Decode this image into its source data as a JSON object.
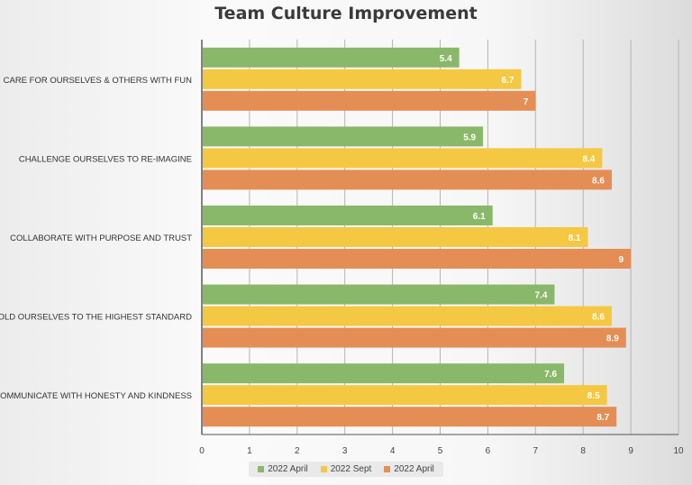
{
  "chart_data": {
    "type": "bar",
    "orientation": "horizontal",
    "title": "Team Culture Improvement",
    "categories": [
      "CARE FOR OURSELVES & OTHERS WITH FUN",
      "CHALLENGE OURSELVES TO RE-IMAGINE",
      "COLLABORATE WITH PURPOSE AND TRUST",
      "HOLD OURSELVES TO THE HIGHEST STANDARD",
      "COMMUNICATE WITH HONESTY AND KINDNESS"
    ],
    "series": [
      {
        "name": "2022 April",
        "color": "#8ab86a",
        "values": [
          5.4,
          5.9,
          6.1,
          7.4,
          7.6
        ]
      },
      {
        "name": "2022 Sept",
        "color": "#f4c842",
        "values": [
          6.7,
          8.4,
          8.1,
          8.6,
          8.5
        ]
      },
      {
        "name": "2022 April",
        "color": "#e48e55",
        "values": [
          7,
          8.6,
          9,
          8.9,
          8.7
        ]
      }
    ],
    "xlim": [
      0,
      10
    ],
    "xticks": [
      0,
      1,
      2,
      3,
      4,
      5,
      6,
      7,
      8,
      9,
      10
    ],
    "grid": true,
    "legend": "bottom"
  }
}
